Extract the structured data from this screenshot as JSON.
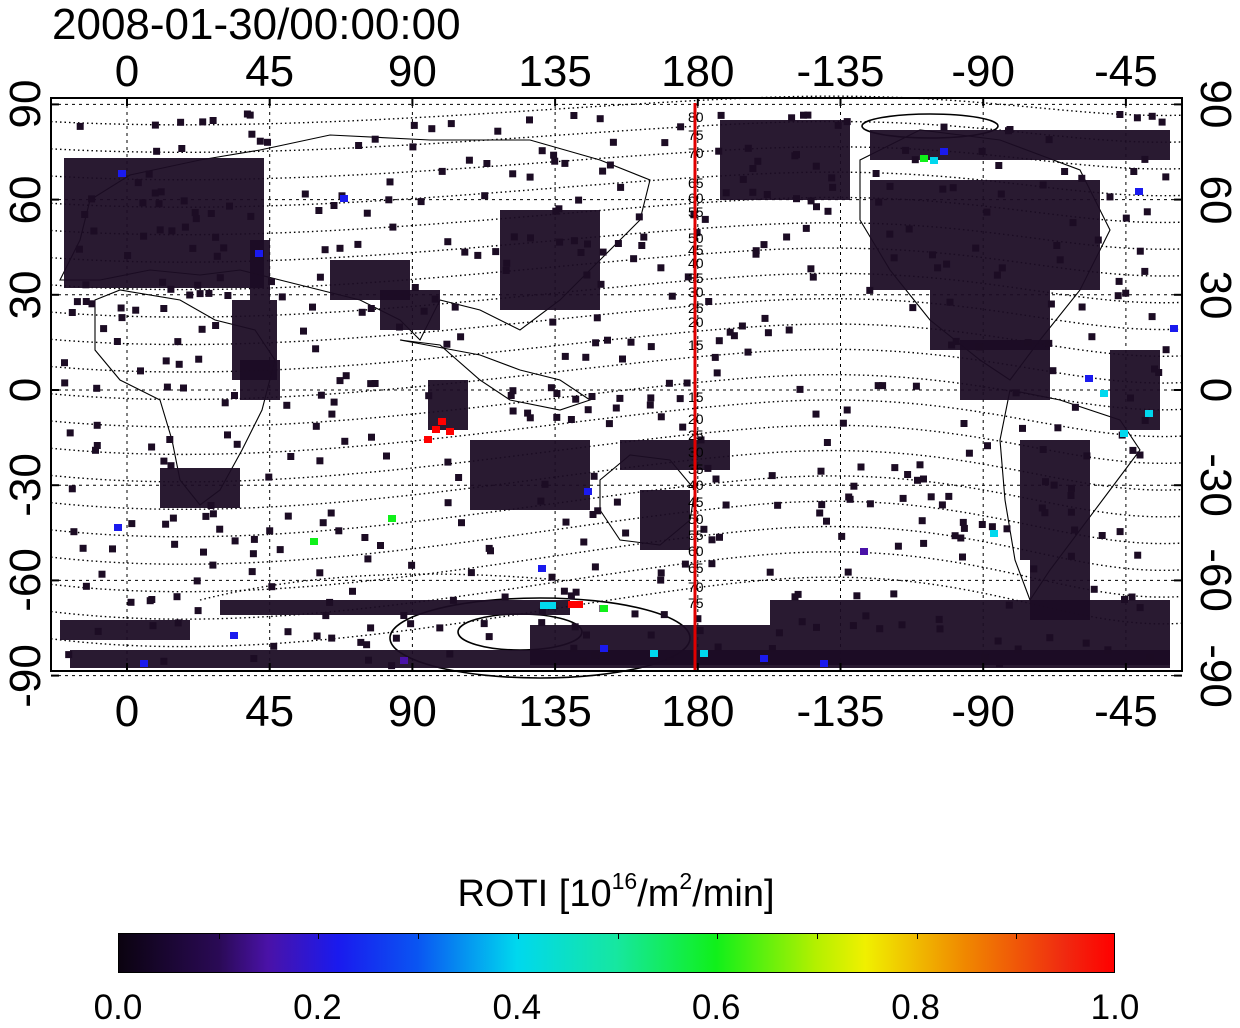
{
  "title": "2008-01-30/00:00:00",
  "map": {
    "top_ticks": [
      "0",
      "45",
      "90",
      "135",
      "180",
      "-135",
      "-90",
      "-45"
    ],
    "bottom_ticks": [
      "0",
      "45",
      "90",
      "135",
      "180",
      "-135",
      "-90",
      "-45"
    ],
    "left_ticks": [
      "90",
      "60",
      "30",
      "0",
      "-30",
      "-60",
      "-90"
    ],
    "right_ticks": [
      "90",
      "60",
      "30",
      "0",
      "-30",
      "-60",
      "-90"
    ],
    "mlat_labels": [
      "80",
      "75",
      "70",
      "65",
      "60",
      "55",
      "50",
      "45",
      "40",
      "35",
      "30",
      "25",
      "20",
      "15",
      "15",
      "20",
      "25",
      "30",
      "35",
      "40",
      "45",
      "50",
      "55",
      "60",
      "65",
      "70",
      "75"
    ],
    "meridian_line_color": "#e00000",
    "coastline_color": "#000000",
    "grid": "dotted",
    "base_cell_color": "#1c0c24",
    "accent_cell_colors": [
      "#4a12a8",
      "#1a1aee",
      "#00d8ee",
      "#10f01a",
      "#ff0000"
    ]
  },
  "colorbar": {
    "label_main": "ROTI  [10",
    "label_exp1": "16",
    "label_mid": "/m",
    "label_exp2": "2",
    "label_end": "/min]",
    "tick_labels": [
      "0.0",
      "0.2",
      "0.4",
      "0.6",
      "0.8",
      "1.0"
    ],
    "min": 0.0,
    "max": 1.0
  }
}
